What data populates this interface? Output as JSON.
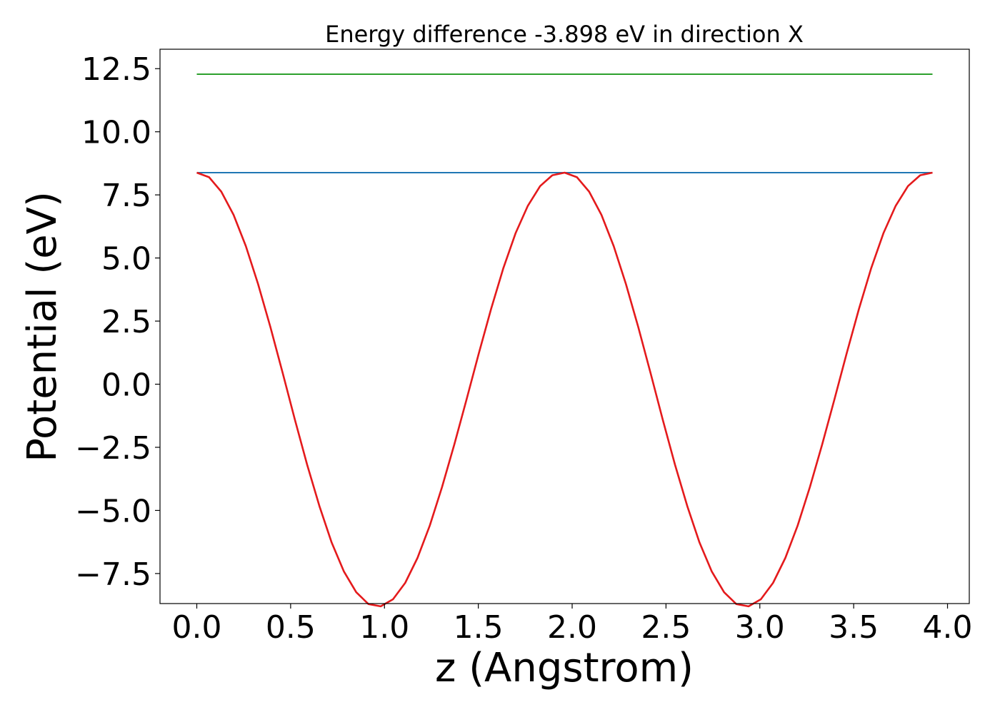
{
  "chart_data": {
    "type": "line",
    "title": "Energy difference -3.898 eV in direction X",
    "xlabel": "z (Angstrom)",
    "ylabel": "Potential (eV)",
    "xlim": [
      -0.196,
      4.116
    ],
    "ylim": [
      -8.69,
      13.27
    ],
    "grid": false,
    "xticks": [
      0.0,
      0.5,
      1.0,
      1.5,
      2.0,
      2.5,
      3.0,
      3.5,
      4.0
    ],
    "xtick_labels": [
      "0.0",
      "0.5",
      "1.0",
      "1.5",
      "2.0",
      "2.5",
      "3.0",
      "3.5",
      "4.0"
    ],
    "yticks": [
      -7.5,
      -5.0,
      -2.5,
      0.0,
      2.5,
      5.0,
      7.5,
      10.0,
      12.5
    ],
    "ytick_labels": [
      "−7.5",
      "−5.0",
      "−2.5",
      "0.0",
      "2.5",
      "5.0",
      "7.5",
      "10.0",
      "12.5"
    ],
    "series": [
      {
        "color": "#2ca02c",
        "x": [
          0.0,
          3.92
        ],
        "y": [
          12.28,
          12.28
        ]
      },
      {
        "color": "#1f77b4",
        "x": [
          0.0,
          3.92
        ],
        "y": [
          8.38,
          8.38
        ]
      },
      {
        "color": "#e41a1c",
        "x": [
          0.0,
          0.0653,
          0.1307,
          0.196,
          0.2613,
          0.3267,
          0.392,
          0.4573,
          0.5227,
          0.588,
          0.6533,
          0.7187,
          0.784,
          0.8493,
          0.9147,
          0.98,
          1.0453,
          1.1107,
          1.176,
          1.2413,
          1.3067,
          1.372,
          1.4373,
          1.5027,
          1.568,
          1.6333,
          1.6987,
          1.764,
          1.8293,
          1.8947,
          1.96,
          2.0253,
          2.0907,
          2.156,
          2.2213,
          2.2867,
          2.352,
          2.4173,
          2.4827,
          2.548,
          2.6133,
          2.6787,
          2.744,
          2.8093,
          2.8747,
          2.94,
          3.0053,
          3.0707,
          3.136,
          3.2013,
          3.2667,
          3.332,
          3.3973,
          3.4627,
          3.528,
          3.5933,
          3.6587,
          3.724,
          3.7893,
          3.8547,
          3.92
        ],
        "y": [
          8.38,
          8.2,
          7.63,
          6.71,
          5.47,
          3.97,
          2.27,
          0.45,
          -1.4,
          -3.19,
          -4.83,
          -6.27,
          -7.42,
          -8.24,
          -8.71,
          -8.8,
          -8.52,
          -7.87,
          -6.88,
          -5.6,
          -4.08,
          -2.39,
          -0.6,
          1.22,
          2.98,
          4.6,
          5.98,
          7.07,
          7.85,
          8.28,
          8.38,
          8.2,
          7.63,
          6.71,
          5.47,
          3.97,
          2.27,
          0.45,
          -1.4,
          -3.19,
          -4.83,
          -6.27,
          -7.42,
          -8.24,
          -8.71,
          -8.8,
          -8.52,
          -7.87,
          -6.88,
          -5.6,
          -4.08,
          -2.39,
          -0.6,
          1.22,
          2.98,
          4.6,
          5.98,
          7.07,
          7.85,
          8.28,
          8.38
        ]
      }
    ]
  }
}
